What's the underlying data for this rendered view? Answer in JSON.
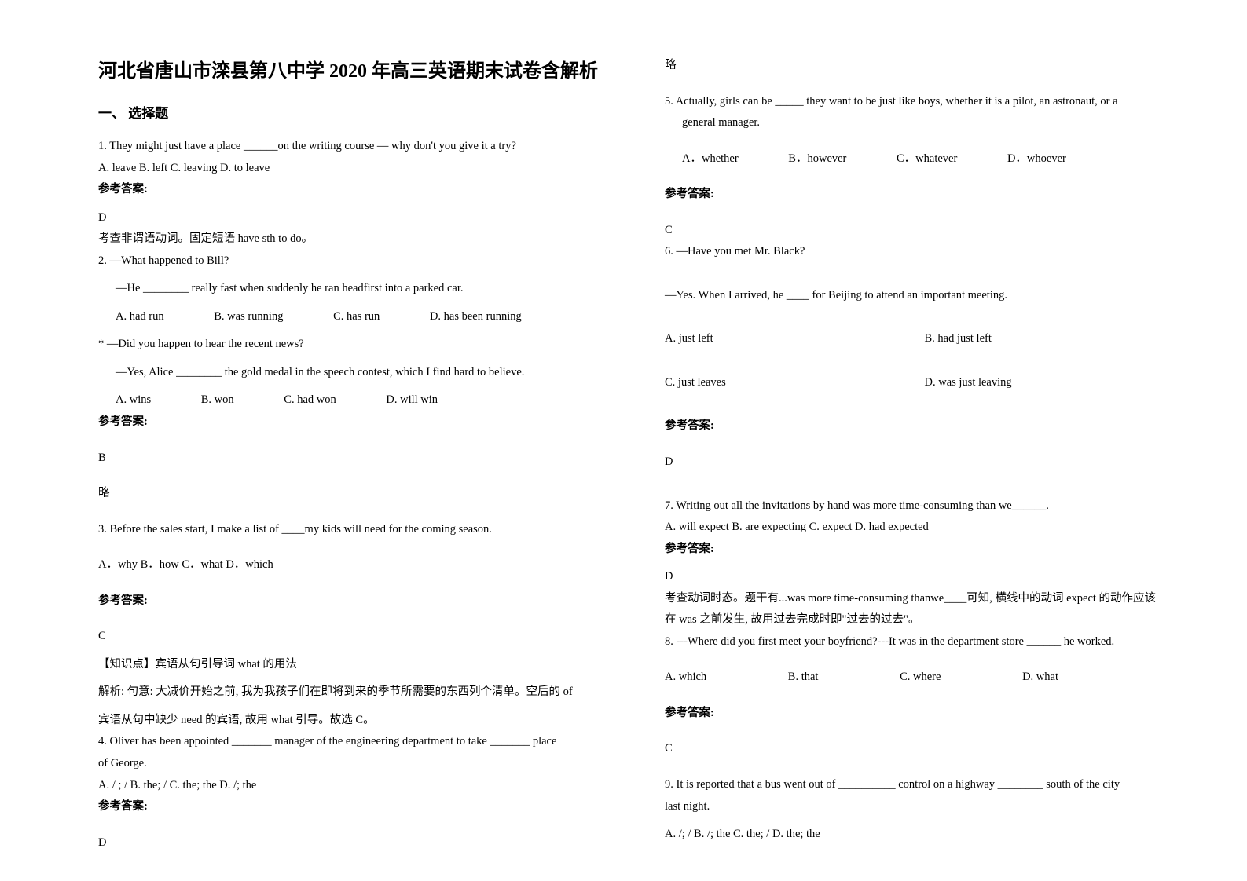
{
  "title": "河北省唐山市滦县第八中学 2020 年高三英语期末试卷含解析",
  "section1": "一、 选择题",
  "q1": {
    "text": "1. They might just have a place ______on the writing course — why don't you give it a try?",
    "opts": "A. leave   B. left   C. leaving   D. to leave",
    "ansLabel": "参考答案:",
    "ans": "D",
    "exp": "考查非谓语动词。固定短语 have sth to do。"
  },
  "q2": {
    "l1": "2. —What happened to Bill?",
    "l2": "—He ________ really fast when suddenly he ran headfirst into a parked car.",
    "opts": [
      "A. had run",
      "B. was running",
      "C. has run",
      "D. has been running"
    ],
    "l3": "* —Did you happen to hear the recent news?",
    "l4": "—Yes, Alice ________ the gold medal in the speech contest, which I find hard to believe.",
    "opts2": [
      "A. wins",
      "B. won",
      "C. had won",
      "D. will win"
    ],
    "ansLabel": "参考答案:",
    "ans": "B",
    "exp": "略"
  },
  "q3": {
    "text": "3. Before the sales start, I make a list of ____my kids will need for the coming season.",
    "opts": "A．why    B．how    C．what   D．which",
    "ansLabel": "参考答案:",
    "ans": "C",
    "kp": "【知识点】宾语从句引导词 what 的用法",
    "exp1": "解析: 句意: 大减价开始之前, 我为我孩子们在即将到来的季节所需要的东西列个清单。空后的 of",
    "exp2": "宾语从句中缺少 need 的宾语,  故用 what 引导。故选 C。"
  },
  "q4": {
    "l1": "4. Oliver has been appointed _______ manager of the engineering department to take _______ place",
    "l2": "of George.",
    "opts": "  A. / ; /        B. the; /        C. the; the      D. /; the",
    "ansLabel": "参考答案:",
    "ans": "D"
  },
  "r_top": "略",
  "q5": {
    "l1": "5. Actually, girls can be _____ they want to be just like boys, whether it is a pilot, an astronaut, or a",
    "l2": "general manager.",
    "opts": [
      "A．whether",
      "B．however",
      "C．whatever",
      "D．whoever"
    ],
    "ansLabel": "参考答案:",
    "ans": "C"
  },
  "q6": {
    "l1": "6. —Have you met Mr. Black?",
    "l2": "—Yes. When I arrived, he ____ for Beijing to attend an important meeting.",
    "oA": "A. just left",
    "oB": "B. had just left",
    "oC": "C. just leaves",
    "oD": "D. was just leaving",
    "ansLabel": "参考答案:",
    "ans": "D"
  },
  "q7": {
    "text": "7. Writing out all the invitations by hand was more time-consuming than we______.",
    "opts": "  A. will expect  B. are expecting  C. expect D. had expected",
    "ansLabel": "参考答案:",
    "ans": "D",
    "exp1": "考查动词时态。题干有...was more time-consuming thanwe____可知, 横线中的动词 expect 的动作应该",
    "exp2": "在 was 之前发生, 故用过去完成时即\"过去的过去\"。"
  },
  "q8": {
    "text": "8. ---Where did you first meet your boyfriend?---It was in the department store ______ he worked.",
    "opts": [
      "A. which",
      "B. that",
      "C. where",
      "D. what"
    ],
    "ansLabel": "参考答案:",
    "ans": "C"
  },
  "q9": {
    "l1": "9. It is reported that a bus went out of __________ control on a highway ________ south of the city",
    "l2": "last night.",
    "opts": "A. /; /       B. /; the      C. the; /      D. the; the"
  }
}
